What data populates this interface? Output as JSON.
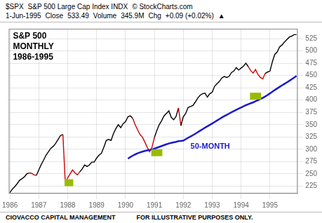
{
  "chart_data": {
    "type": "line",
    "title": "S&P 500\nMONTHLY\n1986-1995",
    "subtitle": [
      [
        "$SPX",
        "S&P 500 Large Cap Index  INDX",
        "© StockCharts.com"
      ],
      [
        "1-Jun-1995",
        "Close",
        "533.49",
        "Volume",
        "345.9M",
        "Chg",
        "+0.09 (+0.02%)",
        "▲"
      ]
    ],
    "annotations": [
      {
        "text": "50-MONTH",
        "x": 75,
        "y": 305,
        "color": "#1a1acc"
      },
      {
        "text": "CIOVACCO CAPITAL MANAGEMENT"
      },
      {
        "text": "FOR ILLUSTRATIVE PURPOSES ONLY."
      }
    ],
    "categories": [
      "1986",
      null,
      null,
      null,
      null,
      null,
      null,
      null,
      null,
      null,
      null,
      null,
      "1987",
      null,
      null,
      null,
      null,
      null,
      null,
      null,
      null,
      null,
      null,
      null,
      "1988",
      null,
      null,
      null,
      null,
      null,
      null,
      null,
      null,
      null,
      null,
      null,
      "1989",
      null,
      null,
      null,
      null,
      null,
      null,
      null,
      null,
      null,
      null,
      null,
      "1990",
      null,
      null,
      null,
      null,
      null,
      null,
      null,
      null,
      null,
      null,
      null,
      "1991",
      null,
      null,
      null,
      null,
      null,
      null,
      null,
      null,
      null,
      null,
      null,
      "1992",
      null,
      null,
      null,
      null,
      null,
      null,
      null,
      null,
      null,
      null,
      null,
      "1993",
      null,
      null,
      null,
      null,
      null,
      null,
      null,
      null,
      null,
      null,
      null,
      "1994",
      null,
      null,
      null,
      null,
      null,
      null,
      null,
      null,
      null,
      null,
      null,
      "1995",
      null,
      null,
      null,
      null,
      null,
      null,
      null,
      null,
      null,
      null,
      null
    ],
    "series": [
      {
        "type": "line",
        "colors": [
          "#000000",
          "#000000",
          "#000000",
          "#000000",
          "#000000",
          "#000000",
          "#000000",
          "#000000",
          "#000000",
          "#cc0000",
          "#cc0000",
          "#cc0000",
          "#000000",
          "#000000",
          "#000000",
          "#000000",
          "#000000",
          "#000000",
          "#000000",
          "#000000",
          "#000000",
          "#000000",
          "#000000",
          "#cc0000",
          "#cc0000",
          "#cc0000",
          "#cc0000",
          "#cc0000",
          "#cc0000",
          "#cc0000",
          "#000000",
          "#000000",
          "#000000",
          "#000000",
          "#000000",
          "#000000",
          "#000000",
          "#000000",
          "#000000",
          "#000000",
          "#000000",
          "#000000",
          "#000000",
          "#000000",
          "#000000",
          "#000000",
          "#000000",
          "#000000",
          "#000000",
          "#000000",
          "#000000",
          "#000000",
          "#cc0000",
          "#cc0000",
          "#cc0000",
          "#cc0000",
          "#cc0000",
          "#cc0000",
          "#cc0000",
          "#cc0000",
          "#cc0000",
          "#000000",
          "#000000",
          "#000000",
          "#000000",
          "#000000",
          "#000000",
          "#000000",
          "#000000",
          "#000000",
          "#000000",
          "#cc0000",
          "#000000",
          "#000000",
          "#000000",
          "#000000",
          "#000000",
          "#000000",
          "#000000",
          "#000000",
          "#000000",
          "#000000",
          "#000000",
          "#000000",
          "#000000",
          "#000000",
          "#000000",
          "#000000",
          "#000000",
          "#000000",
          "#000000",
          "#000000",
          "#000000",
          "#000000",
          "#000000",
          "#000000",
          "#000000",
          "#000000",
          "#000000",
          "#000000",
          "#cc0000",
          "#cc0000",
          "#cc0000",
          "#cc0000",
          "#cc0000",
          "#cc0000",
          "#cc0000",
          "#000000",
          "#000000",
          "#000000",
          "#000000",
          "#000000",
          "#000000",
          "#000000",
          "#000000",
          "#000000",
          "#000000",
          "#000000",
          "#000000",
          "#000000"
        ],
        "values": [
          212,
          219,
          224,
          230,
          237,
          240,
          244,
          250,
          252,
          251,
          248,
          247,
          258,
          269,
          278,
          288,
          295,
          302,
          306,
          312,
          320,
          328,
          330,
          231,
          242,
          250,
          258,
          252,
          248,
          254,
          260,
          268,
          265,
          268,
          274,
          274,
          282,
          288,
          292,
          304,
          318,
          320,
          318,
          332,
          342,
          350,
          344,
          352,
          356,
          366,
          368,
          363,
          350,
          340,
          330,
          325,
          315,
          304,
          295,
          304,
          324,
          338,
          350,
          358,
          368,
          373,
          378,
          365,
          360,
          367,
          384,
          348,
          366,
          373,
          385,
          387,
          389,
          396,
          404,
          410,
          413,
          414,
          406,
          413,
          416,
          428,
          433,
          438,
          445,
          448,
          446,
          448,
          456,
          459,
          466,
          461,
          465,
          469,
          475,
          468,
          460,
          455,
          462,
          452,
          446,
          443,
          454,
          457,
          459,
          478,
          493,
          498,
          508,
          512,
          518,
          523,
          528,
          530,
          533,
          533
        ]
      },
      {
        "type": "line",
        "color": "#1a1acc",
        "values": [
          null,
          null,
          null,
          null,
          null,
          null,
          null,
          null,
          null,
          null,
          null,
          null,
          null,
          null,
          null,
          null,
          null,
          null,
          null,
          null,
          null,
          null,
          null,
          null,
          null,
          null,
          null,
          null,
          null,
          null,
          null,
          null,
          null,
          null,
          null,
          null,
          null,
          null,
          null,
          null,
          null,
          null,
          null,
          null,
          null,
          null,
          null,
          null,
          null,
          280.96,
          284.08,
          286.96,
          289.48,
          291.68,
          293.54,
          295.24,
          296.66,
          297.74,
          298.6,
          299.66,
          301.18,
          303,
          304.84,
          306.62,
          308.42,
          310.12,
          311.78,
          313.04,
          314.12,
          315.22,
          316.5,
          316.9,
          317.62,
          320.46,
          323.32,
          326.06,
          328.68,
          331.56,
          334.68,
          337.8,
          340.86,
          343.78,
          346.6,
          349.5,
          352.34,
          355.42,
          358.44,
          361.44,
          364.5,
          367.38,
          369.94,
          372.5,
          375.26,
          377.8,
          380.28,
          382.5,
          384.92,
          387.26,
          389.64,
          391.68,
          393.52,
          395.36,
          397.6,
          399.84,
          402.16,
          404.52,
          407.3,
          410.36,
          413.64,
          417.12,
          420.5,
          423.7,
          426.86,
          429.94,
          432.94,
          435.94,
          438.94,
          442.24,
          445.7,
          449.02
        ]
      }
    ],
    "highlights": [
      {
        "x_start": 23,
        "x_end": 26,
        "y_center": 232,
        "height": 14,
        "color": "#99bb00"
      },
      {
        "x_start": 59,
        "x_end": 63,
        "y_center": 293,
        "height": 14,
        "color": "#99bb00"
      },
      {
        "x_start": 100,
        "x_end": 104,
        "y_center": 408,
        "height": 14,
        "color": "#99bb00"
      }
    ],
    "ylim": [
      210,
      545
    ],
    "yticks": [
      225,
      250,
      275,
      300,
      325,
      350,
      375,
      400,
      425,
      450,
      475,
      500,
      525
    ],
    "grid": true
  }
}
